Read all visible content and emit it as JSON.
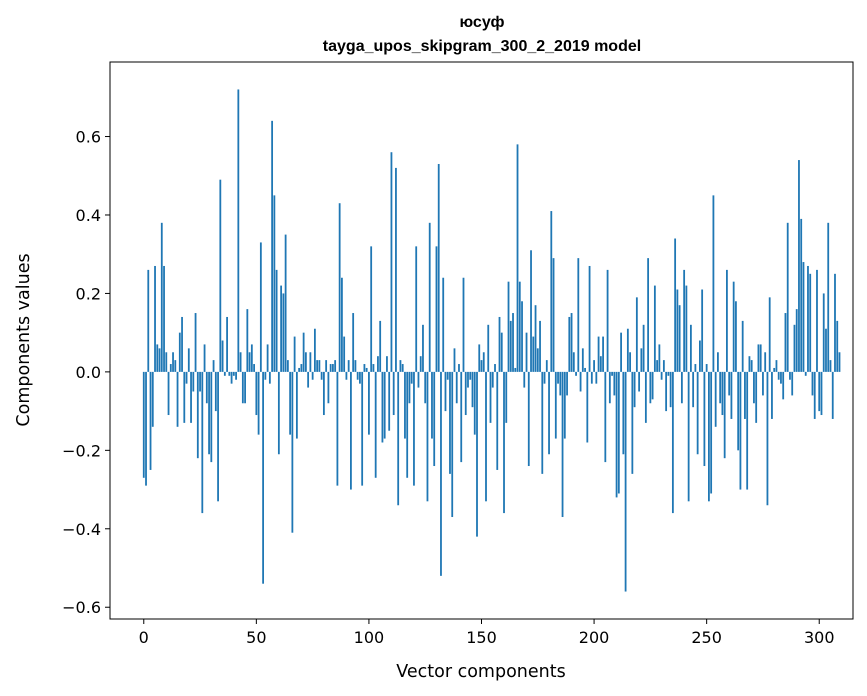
{
  "chart_data": {
    "type": "bar",
    "title_lines": [
      "юсуф",
      "tayga_upos_skipgram_300_2_2019 model"
    ],
    "xlabel": "Vector components",
    "ylabel": "Components values",
    "xlim": [
      -15,
      315
    ],
    "ylim": [
      -0.63,
      0.79
    ],
    "xticks": [
      0,
      50,
      100,
      150,
      200,
      250,
      300
    ],
    "xtick_labels": [
      "0",
      "50",
      "100",
      "150",
      "200",
      "250",
      "300"
    ],
    "yticks": [
      -0.6,
      -0.4,
      -0.2,
      0.0,
      0.2,
      0.4,
      0.6
    ],
    "ytick_labels": [
      "−0.6",
      "−0.4",
      "−0.2",
      "0.0",
      "0.2",
      "0.4",
      "0.6"
    ],
    "bar_color": "#1f77b4",
    "values": [
      -0.27,
      -0.29,
      0.26,
      -0.25,
      -0.14,
      0.27,
      0.07,
      0.06,
      0.38,
      0.27,
      0.05,
      -0.11,
      0.02,
      0.05,
      0.03,
      -0.14,
      0.1,
      0.14,
      -0.13,
      -0.03,
      0.06,
      -0.13,
      -0.05,
      0.15,
      -0.22,
      -0.05,
      -0.36,
      0.07,
      -0.08,
      -0.21,
      -0.23,
      0.03,
      -0.1,
      -0.33,
      0.49,
      0.08,
      -0.01,
      0.14,
      -0.01,
      -0.03,
      -0.01,
      -0.02,
      0.72,
      0.05,
      -0.08,
      -0.08,
      0.16,
      0.05,
      0.07,
      0.02,
      -0.11,
      -0.16,
      0.33,
      -0.54,
      -0.02,
      0.07,
      -0.03,
      0.64,
      0.45,
      0.26,
      -0.21,
      0.22,
      0.2,
      0.35,
      0.03,
      -0.16,
      -0.41,
      0.09,
      -0.17,
      0.01,
      0.02,
      0.1,
      0.05,
      -0.04,
      0.05,
      -0.02,
      0.11,
      0.03,
      0.03,
      -0.02,
      -0.11,
      0.03,
      -0.08,
      0.02,
      0.02,
      0.03,
      -0.29,
      0.43,
      0.24,
      0.09,
      -0.02,
      0.03,
      -0.3,
      0.15,
      0.03,
      -0.02,
      -0.03,
      -0.29,
      0.02,
      0.01,
      -0.16,
      0.32,
      0.02,
      -0.27,
      0.04,
      0.13,
      -0.18,
      -0.17,
      0.04,
      -0.15,
      0.56,
      -0.11,
      0.52,
      -0.34,
      0.03,
      0.02,
      -0.17,
      -0.27,
      -0.08,
      -0.03,
      -0.29,
      0.32,
      -0.04,
      0.04,
      0.12,
      -0.08,
      -0.33,
      0.38,
      -0.17,
      -0.24,
      0.32,
      0.53,
      -0.52,
      0.24,
      -0.1,
      -0.02,
      -0.26,
      -0.37,
      0.06,
      -0.08,
      0.02,
      -0.23,
      0.24,
      -0.11,
      -0.04,
      -0.02,
      -0.09,
      -0.16,
      -0.42,
      0.07,
      0.03,
      0.05,
      -0.33,
      0.12,
      -0.13,
      -0.04,
      0.02,
      -0.25,
      0.14,
      0.1,
      -0.36,
      -0.13,
      0.23,
      0.13,
      0.15,
      0.01,
      0.58,
      0.23,
      0.18,
      -0.04,
      0.1,
      -0.24,
      0.31,
      0.09,
      0.17,
      0.06,
      0.13,
      -0.26,
      -0.03,
      0.03,
      -0.21,
      0.41,
      0.29,
      -0.17,
      -0.03,
      -0.06,
      -0.37,
      -0.17,
      -0.06,
      0.14,
      0.15,
      0.05,
      -0.01,
      0.29,
      -0.05,
      0.06,
      0.01,
      -0.18,
      0.27,
      -0.03,
      0.03,
      -0.03,
      0.09,
      0.04,
      0.09,
      -0.23,
      0.26,
      -0.08,
      -0.01,
      -0.06,
      -0.32,
      -0.31,
      0.1,
      -0.21,
      -0.56,
      0.11,
      0.05,
      -0.26,
      -0.09,
      0.19,
      -0.05,
      0.06,
      0.12,
      -0.13,
      0.29,
      -0.08,
      -0.07,
      0.22,
      0.03,
      0.07,
      -0.02,
      0.03,
      -0.1,
      -0.01,
      -0.09,
      -0.36,
      0.34,
      0.21,
      0.17,
      -0.08,
      0.26,
      0.22,
      -0.33,
      0.12,
      -0.09,
      0.02,
      -0.21,
      0.08,
      0.21,
      -0.24,
      0.02,
      -0.33,
      -0.31,
      0.45,
      -0.14,
      0.05,
      -0.08,
      -0.11,
      -0.22,
      0.26,
      -0.06,
      -0.12,
      0.23,
      0.18,
      -0.2,
      -0.3,
      0.13,
      -0.12,
      -0.3,
      0.04,
      0.03,
      -0.08,
      -0.13,
      0.07,
      0.07,
      -0.06,
      0.05,
      -0.34,
      0.19,
      -0.12,
      0.01,
      0.03,
      -0.02,
      -0.03,
      -0.07,
      0.15,
      0.38,
      -0.02,
      -0.06,
      0.12,
      0.16,
      0.54,
      0.39,
      0.28,
      -0.01,
      0.27,
      0.25,
      -0.06,
      -0.12,
      0.26,
      -0.1,
      -0.11,
      0.2,
      0.11,
      0.38,
      0.03,
      -0.12,
      0.25,
      0.13,
      0.05
    ]
  }
}
